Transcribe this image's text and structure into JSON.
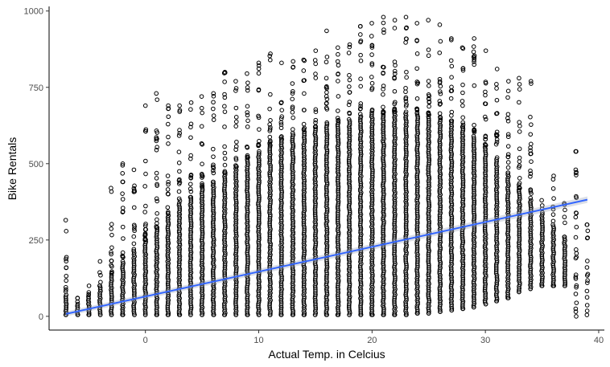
{
  "chart_data": {
    "type": "scatter",
    "title": "",
    "xlabel": "Actual Temp. in Celcius",
    "ylabel": "Bike Rentals",
    "xlim": [
      -8.5,
      40.5
    ],
    "ylim": [
      -45,
      1015
    ],
    "x_ticks": [
      0,
      10,
      20,
      30,
      40
    ],
    "y_ticks": [
      0,
      250,
      500,
      750,
      1000
    ],
    "grid": false,
    "legend": "none",
    "point_style": "hollow-circle",
    "point_color": "#000000",
    "x_columns": [
      -7,
      -6,
      -5,
      -4,
      -3,
      -2,
      -1,
      0,
      1,
      2,
      3,
      4,
      5,
      6,
      7,
      8,
      9,
      10,
      11,
      12,
      13,
      14,
      15,
      16,
      17,
      18,
      19,
      20,
      21,
      22,
      23,
      24,
      25,
      26,
      27,
      28,
      29,
      30,
      31,
      32,
      33,
      34,
      35,
      36,
      37,
      38,
      39
    ],
    "dense_band_top": [
      70,
      40,
      70,
      100,
      140,
      180,
      220,
      250,
      290,
      330,
      370,
      390,
      420,
      440,
      470,
      490,
      520,
      540,
      560,
      580,
      600,
      610,
      620,
      630,
      640,
      645,
      650,
      660,
      665,
      670,
      670,
      665,
      660,
      650,
      640,
      620,
      590,
      560,
      520,
      470,
      420,
      380,
      340,
      300,
      260,
      0,
      0
    ],
    "max_values": [
      315,
      60,
      100,
      180,
      420,
      500,
      480,
      690,
      730,
      690,
      690,
      700,
      720,
      730,
      800,
      770,
      795,
      830,
      860,
      830,
      835,
      840,
      870,
      935,
      880,
      890,
      950,
      960,
      980,
      970,
      980,
      960,
      970,
      955,
      910,
      880,
      910,
      870,
      810,
      770,
      780,
      770,
      380,
      460,
      370,
      540,
      300
    ],
    "min_values": [
      5,
      5,
      5,
      5,
      5,
      5,
      5,
      5,
      5,
      5,
      5,
      5,
      5,
      5,
      5,
      5,
      5,
      5,
      5,
      5,
      5,
      5,
      5,
      5,
      5,
      5,
      5,
      5,
      5,
      5,
      5,
      10,
      10,
      15,
      20,
      25,
      30,
      40,
      50,
      60,
      80,
      90,
      100,
      100,
      100,
      540,
      300
    ],
    "trend_line": {
      "type": "linear",
      "color": "#3366ff",
      "x": [
        -7,
        39
      ],
      "y": [
        8,
        382
      ]
    }
  }
}
